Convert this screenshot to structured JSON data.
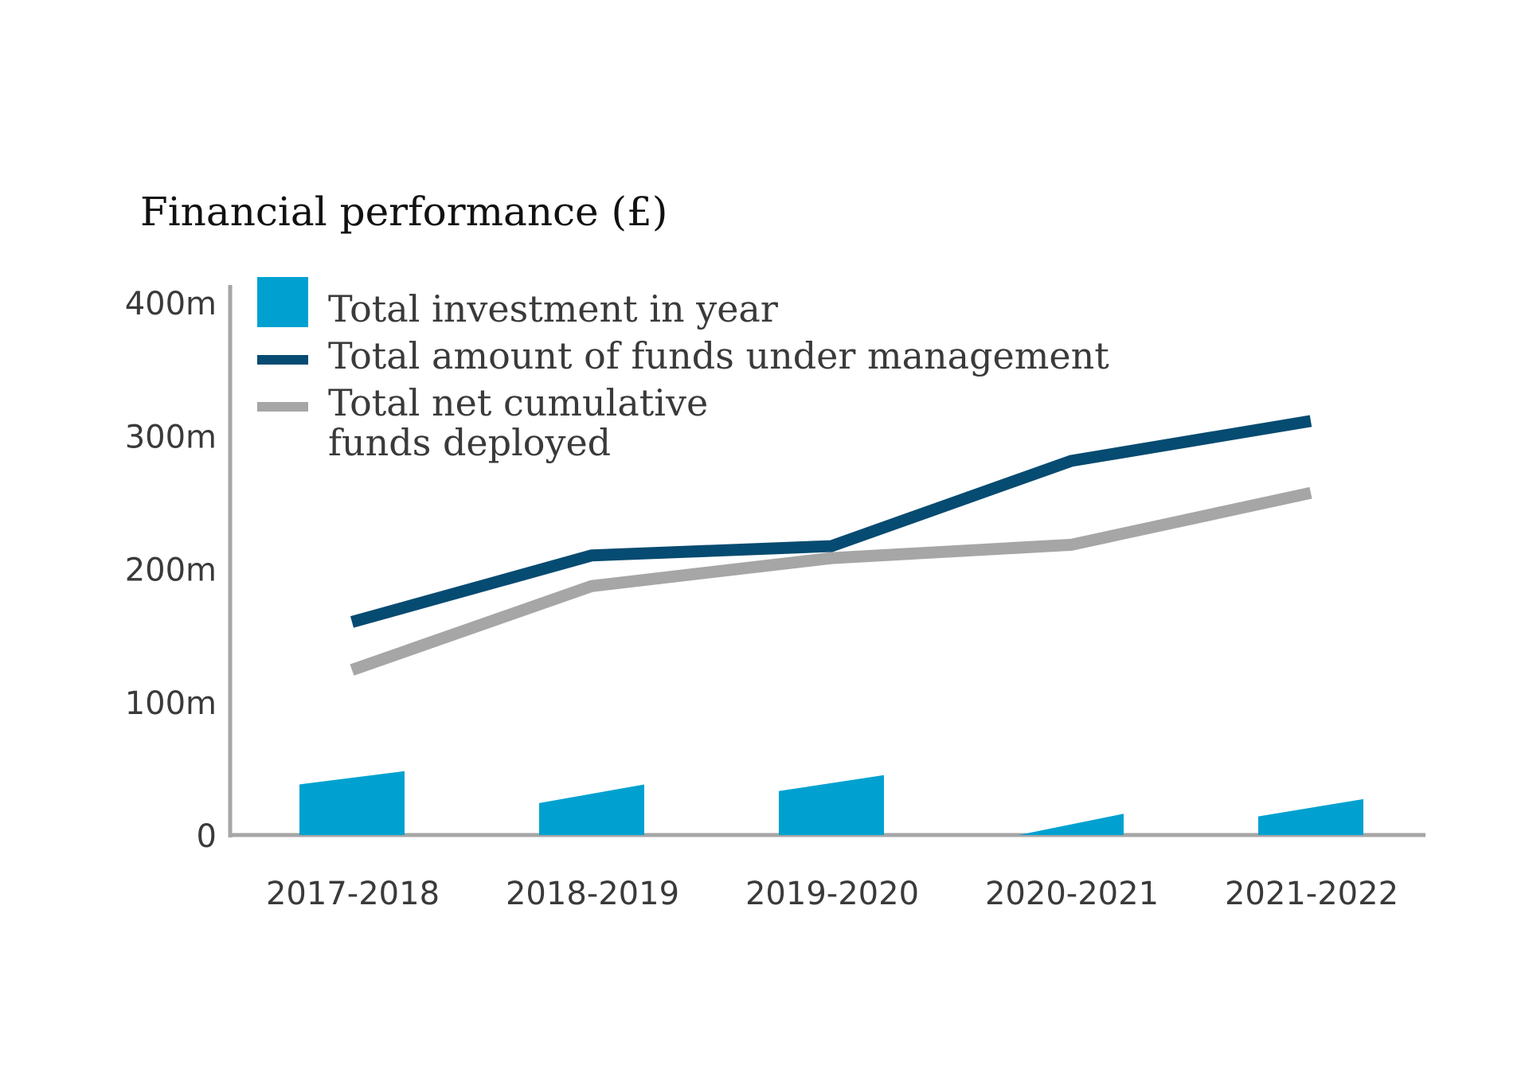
{
  "chart_data": {
    "type": "bar",
    "title": "Financial performance (£)",
    "categories": [
      "2017-2018",
      "2018-2019",
      "2019-2020",
      "2020-2021",
      "2021-2022"
    ],
    "y_ticks": [
      "0",
      "100m",
      "200m",
      "300m",
      "400m"
    ],
    "ylim": [
      0,
      400
    ],
    "y_unit": "m",
    "grid": false,
    "legend_position": "top-left",
    "bars": {
      "name": "Total investment in year",
      "color": "#00a1d0",
      "values": [
        [
          38,
          48
        ],
        [
          24,
          38
        ],
        [
          33,
          45
        ],
        [
          0,
          16
        ],
        [
          14,
          27
        ]
      ]
    },
    "series": [
      {
        "name": "Total amount of funds under management",
        "type": "line",
        "color": "#064b71",
        "values": [
          160,
          210,
          217,
          281,
          311
        ]
      },
      {
        "name": "Total net cumulative\nfunds deployed",
        "legend_lines": [
          "Total net cumulative",
          "funds deployed"
        ],
        "type": "line",
        "color": "#a6a6a6",
        "values": [
          124,
          187,
          208,
          218,
          257
        ]
      }
    ]
  }
}
